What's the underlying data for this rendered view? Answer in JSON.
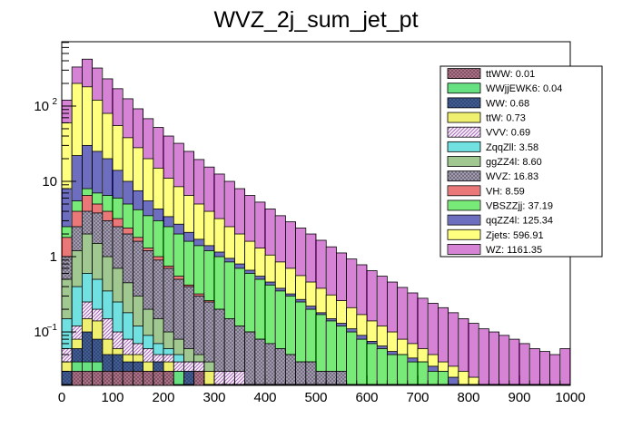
{
  "chart_data": {
    "type": "bar",
    "subtype": "stacked-histogram",
    "title": "WVZ_2j_sum_jet_pt",
    "xlabel": "",
    "ylabel": "",
    "xlim": [
      0,
      1000
    ],
    "ylim": [
      0.0195,
      716
    ],
    "yscale": "log",
    "bin_width": 20,
    "grid": false,
    "legend_position": "top-right",
    "x_ticks": [
      {
        "value": 0,
        "label": "0"
      },
      {
        "value": 100,
        "label": "100"
      },
      {
        "value": 200,
        "label": "200"
      },
      {
        "value": 300,
        "label": "300"
      },
      {
        "value": 400,
        "label": "400"
      },
      {
        "value": 500,
        "label": "500"
      },
      {
        "value": 600,
        "label": "600"
      },
      {
        "value": 700,
        "label": "700"
      },
      {
        "value": 800,
        "label": "800"
      },
      {
        "value": 900,
        "label": "900"
      },
      {
        "value": 1000,
        "label": "1000"
      }
    ],
    "y_ticks": [
      {
        "value": 0.1,
        "label": "10",
        "exp": "−1"
      },
      {
        "value": 1,
        "label": "1",
        "exp": ""
      },
      {
        "value": 10,
        "label": "10",
        "exp": ""
      },
      {
        "value": 100,
        "label": "10",
        "exp": "2"
      }
    ],
    "stack_order_bottom_to_top": [
      "ttWW",
      "WWjjEWK6",
      "WW",
      "ttW",
      "VVV",
      "ZqqZll",
      "ggZZ4l",
      "WVZ",
      "VH",
      "VBSZZjj",
      "qqZZ4l",
      "Zjets",
      "WZ"
    ],
    "series": [
      {
        "name": "ttWW",
        "legend": "ttWW: 0.01",
        "fill": "#b5738c",
        "pattern": "cross",
        "cumulative_top": [
          0.02,
          0.03,
          0.03,
          0.03,
          0.03,
          0.03,
          0.03,
          0.03,
          0.03,
          0.03,
          0.03,
          0.02,
          0.02,
          0.03,
          0.02,
          0.02,
          0.02,
          0.02,
          0.02,
          0.02,
          0.02,
          0.02,
          0.02,
          0.02,
          0.02,
          0.02,
          0.02,
          0.02,
          0.02,
          0.02,
          0.02,
          0.02,
          0.02,
          0.02,
          0.02,
          0.02,
          0.02,
          0.02,
          0.02,
          0.02,
          0.02,
          0.02,
          0.02,
          0.02,
          0.02,
          0.02,
          0.02,
          0.02,
          0.02,
          0.02
        ]
      },
      {
        "name": "WWjjEWK6",
        "legend": "WWjjEWK6: 0.04",
        "fill": "#66e080",
        "pattern": "solid",
        "cumulative_top": [
          0.02,
          0.04,
          0.04,
          0.04,
          0.03,
          0.03,
          0.03,
          0.03,
          0.03,
          0.03,
          0.03,
          0.03,
          0.02,
          0.03,
          0.02,
          0.02,
          0.02,
          0.02,
          0.02,
          0.02,
          0.02,
          0.02,
          0.02,
          0.02,
          0.02,
          0.02,
          0.02,
          0.02,
          0.02,
          0.02,
          0.02,
          0.02,
          0.02,
          0.02,
          0.02,
          0.02,
          0.02,
          0.02,
          0.02,
          0.02,
          0.02,
          0.02,
          0.02,
          0.02,
          0.02,
          0.02,
          0.02,
          0.02,
          0.02,
          0.02
        ]
      },
      {
        "name": "WW",
        "legend": "WW: 0.68",
        "fill": "#4060a0",
        "pattern": "cross",
        "cumulative_top": [
          0.03,
          0.06,
          0.1,
          0.08,
          0.05,
          0.05,
          0.04,
          0.04,
          0.03,
          0.04,
          0.03,
          0.03,
          0.03,
          0.03,
          0.02,
          0.02,
          0.02,
          0.02,
          0.02,
          0.02,
          0.02,
          0.02,
          0.02,
          0.02,
          0.02,
          0.02,
          0.02,
          0.02,
          0.02,
          0.02,
          0.02,
          0.02,
          0.02,
          0.02,
          0.02,
          0.02,
          0.02,
          0.02,
          0.02,
          0.02,
          0.02,
          0.02,
          0.02,
          0.02,
          0.02,
          0.02,
          0.02,
          0.02,
          0.02,
          0.02
        ]
      },
      {
        "name": "ttW",
        "legend": "ttW: 0.73",
        "fill": "#f0f070",
        "pattern": "solid",
        "cumulative_top": [
          0.04,
          0.08,
          0.15,
          0.14,
          0.08,
          0.06,
          0.05,
          0.05,
          0.04,
          0.04,
          0.04,
          0.03,
          0.03,
          0.03,
          0.03,
          0.02,
          0.02,
          0.02,
          0.02,
          0.02,
          0.02,
          0.02,
          0.02,
          0.02,
          0.02,
          0.02,
          0.02,
          0.02,
          0.02,
          0.02,
          0.02,
          0.02,
          0.02,
          0.02,
          0.02,
          0.02,
          0.02,
          0.02,
          0.02,
          0.02,
          0.02,
          0.02,
          0.02,
          0.02,
          0.02,
          0.02,
          0.02,
          0.02,
          0.02,
          0.02
        ]
      },
      {
        "name": "VVV",
        "legend": "VVV: 0.69",
        "fill": "#b070c0",
        "pattern": "hatch",
        "cumulative_top": [
          0.06,
          0.12,
          0.25,
          0.2,
          0.15,
          0.1,
          0.08,
          0.07,
          0.06,
          0.05,
          0.05,
          0.04,
          0.04,
          0.04,
          0.03,
          0.03,
          0.03,
          0.03,
          0.02,
          0.02,
          0.02,
          0.02,
          0.02,
          0.02,
          0.02,
          0.02,
          0.02,
          0.02,
          0.02,
          0.02,
          0.02,
          0.02,
          0.02,
          0.02,
          0.02,
          0.02,
          0.02,
          0.02,
          0.02,
          0.02,
          0.02,
          0.02,
          0.02,
          0.02,
          0.02,
          0.02,
          0.02,
          0.02,
          0.02,
          0.02
        ]
      },
      {
        "name": "ZqqZll",
        "legend": "ZqqZll: 3.58",
        "fill": "#70e0e0",
        "pattern": "solid",
        "cumulative_top": [
          0.15,
          0.4,
          0.6,
          0.5,
          0.35,
          0.25,
          0.18,
          0.12,
          0.09,
          0.07,
          0.06,
          0.05,
          0.04,
          0.04,
          0.03,
          0.03,
          0.03,
          0.03,
          0.02,
          0.02,
          0.02,
          0.02,
          0.02,
          0.02,
          0.02,
          0.02,
          0.02,
          0.02,
          0.02,
          0.02,
          0.02,
          0.02,
          0.02,
          0.02,
          0.02,
          0.02,
          0.02,
          0.02,
          0.02,
          0.02,
          0.02,
          0.02,
          0.02,
          0.02,
          0.02,
          0.02,
          0.02,
          0.02,
          0.02,
          0.02
        ]
      },
      {
        "name": "ggZZ4l",
        "legend": "ggZZ4l: 8.60",
        "fill": "#a0c890",
        "pattern": "solid",
        "cumulative_top": [
          0.5,
          1.2,
          2.0,
          1.5,
          1.0,
          0.7,
          0.45,
          0.3,
          0.2,
          0.15,
          0.1,
          0.08,
          0.06,
          0.05,
          0.04,
          0.03,
          0.03,
          0.03,
          0.02,
          0.02,
          0.02,
          0.02,
          0.02,
          0.02,
          0.02,
          0.02,
          0.02,
          0.02,
          0.02,
          0.02,
          0.02,
          0.02,
          0.02,
          0.02,
          0.02,
          0.02,
          0.02,
          0.02,
          0.02,
          0.02,
          0.02,
          0.02,
          0.02,
          0.02,
          0.02,
          0.02,
          0.02,
          0.02,
          0.02,
          0.02
        ]
      },
      {
        "name": "WVZ",
        "legend": "WVZ: 16.83",
        "fill": "#a8a0b8",
        "pattern": "cross",
        "cumulative_top": [
          1.0,
          2.5,
          4.0,
          3.8,
          3.0,
          2.5,
          2.0,
          1.6,
          1.2,
          0.9,
          0.7,
          0.5,
          0.4,
          0.3,
          0.25,
          0.2,
          0.15,
          0.12,
          0.1,
          0.08,
          0.07,
          0.06,
          0.05,
          0.04,
          0.04,
          0.03,
          0.03,
          0.03,
          0.02,
          0.02,
          0.02,
          0.02,
          0.02,
          0.02,
          0.02,
          0.02,
          0.02,
          0.02,
          0.02,
          0.02,
          0.02,
          0.02,
          0.02,
          0.02,
          0.02,
          0.02,
          0.02,
          0.02,
          0.02,
          0.02
        ]
      },
      {
        "name": "VH",
        "legend": "VH: 8.59",
        "fill": "#e03030",
        "pattern": "vertical",
        "cumulative_top": [
          1.8,
          4.0,
          6.5,
          5.0,
          4.0,
          3.2,
          2.4,
          1.8,
          1.3,
          1.0,
          0.75,
          0.55,
          0.42,
          0.32,
          0.26,
          0.2,
          0.15,
          0.12,
          0.1,
          0.08,
          0.07,
          0.06,
          0.05,
          0.04,
          0.04,
          0.03,
          0.03,
          0.03,
          0.02,
          0.02,
          0.02,
          0.02,
          0.02,
          0.02,
          0.02,
          0.02,
          0.02,
          0.02,
          0.02,
          0.02,
          0.02,
          0.02,
          0.02,
          0.02,
          0.02,
          0.02,
          0.02,
          0.02,
          0.02,
          0.02
        ]
      },
      {
        "name": "VBSZZjj",
        "legend": "VBSZZjj: 37.19",
        "fill": "#30e030",
        "pattern": "vertical",
        "cumulative_top": [
          2.5,
          5.5,
          8.0,
          7.0,
          6.5,
          6.0,
          5.0,
          4.2,
          3.5,
          3.0,
          2.5,
          2.0,
          1.6,
          1.4,
          1.2,
          1.0,
          0.85,
          0.7,
          0.6,
          0.5,
          0.42,
          0.35,
          0.3,
          0.25,
          0.2,
          0.17,
          0.14,
          0.12,
          0.1,
          0.08,
          0.07,
          0.06,
          0.05,
          0.05,
          0.04,
          0.04,
          0.03,
          0.03,
          0.02,
          0.02,
          0.02,
          0.02,
          0.02,
          0.02,
          0.02,
          0.02,
          0.02,
          0.02,
          0.02,
          0.02
        ]
      },
      {
        "name": "qqZZ4l",
        "legend": "qqZZ4l: 125.34",
        "fill": "#2020a0",
        "pattern": "vertical",
        "cumulative_top": [
          8,
          22,
          30,
          25,
          20,
          14,
          10,
          7.5,
          5.5,
          4.3,
          3.4,
          2.7,
          2.1,
          1.7,
          1.4,
          1.15,
          0.95,
          0.8,
          0.66,
          0.55,
          0.46,
          0.38,
          0.32,
          0.27,
          0.22,
          0.18,
          0.15,
          0.13,
          0.11,
          0.09,
          0.075,
          0.065,
          0.055,
          0.05,
          0.045,
          0.04,
          0.035,
          0.03,
          0.025,
          0.02,
          0.02,
          0.02,
          0.02,
          0.02,
          0.02,
          0.02,
          0.02,
          0.02,
          0.02,
          0.02
        ]
      },
      {
        "name": "Zjets",
        "legend": "Zjets: 596.91",
        "fill": "#ffff80",
        "pattern": "solid",
        "cumulative_top": [
          60,
          200,
          180,
          120,
          80,
          55,
          38,
          28,
          20,
          15,
          11,
          8.5,
          6.5,
          5.0,
          4.0,
          3.2,
          2.5,
          2.0,
          1.6,
          1.3,
          1.05,
          0.85,
          0.7,
          0.56,
          0.46,
          0.38,
          0.31,
          0.26,
          0.21,
          0.17,
          0.14,
          0.12,
          0.1,
          0.08,
          0.07,
          0.06,
          0.05,
          0.04,
          0.035,
          0.03,
          0.025,
          0.02,
          0.02,
          0.02,
          0.02,
          0.02,
          0.02,
          0.02,
          0.02,
          0.02
        ]
      },
      {
        "name": "WZ",
        "legend": "WZ: 1161.35",
        "fill": "#c040c0",
        "pattern": "vertical",
        "cumulative_top": [
          120,
          330,
          420,
          320,
          230,
          170,
          125,
          92,
          68,
          52,
          40,
          32,
          25,
          19.5,
          15.5,
          12.5,
          10,
          8,
          6.5,
          5.3,
          4.3,
          3.5,
          2.9,
          2.4,
          2.0,
          1.65,
          1.35,
          1.12,
          0.93,
          0.78,
          0.65,
          0.55,
          0.46,
          0.39,
          0.33,
          0.28,
          0.24,
          0.21,
          0.18,
          0.15,
          0.13,
          0.11,
          0.1,
          0.09,
          0.08,
          0.07,
          0.06,
          0.055,
          0.05,
          0.06
        ]
      }
    ]
  }
}
